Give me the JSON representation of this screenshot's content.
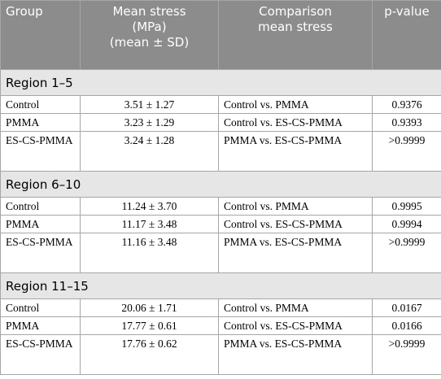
{
  "table": {
    "header": [
      "Group",
      "Mean stress\n(MPa)\n(mean ± SD)",
      "Comparison\nmean stress",
      "p-value"
    ],
    "sections": [
      {
        "title": "Region 1–5",
        "rows": [
          [
            "Control",
            "3.51 ± 1.27",
            "Control vs. PMMA",
            "0.9376"
          ],
          [
            "PMMA",
            "3.23 ± 1.29",
            "Control vs. ES-CS-PMMA",
            "0.9393"
          ],
          [
            "ES-CS-PMMA",
            "3.24 ± 1.28",
            "PMMA vs. ES-CS-PMMA",
            ">0.9999"
          ]
        ]
      },
      {
        "title": "Region 6–10",
        "rows": [
          [
            "Control",
            "11.24 ± 3.70",
            "Control vs. PMMA",
            "0.9995"
          ],
          [
            "PMMA",
            "11.17 ± 3.48",
            "Control vs. ES-CS-PMMA",
            "0.9994"
          ],
          [
            "ES-CS-PMMA",
            "11.16 ± 3.48",
            "PMMA vs. ES-CS-PMMA",
            ">0.9999"
          ]
        ]
      },
      {
        "title": "Region 11–15",
        "rows": [
          [
            "Control",
            "20.06 ± 1.71",
            "Control vs. PMMA",
            "0.0167"
          ],
          [
            "PMMA",
            "17.77 ± 0.61",
            "Control vs. ES-CS-PMMA",
            "0.0166"
          ],
          [
            "ES-CS-PMMA",
            "17.76 ± 0.62",
            "PMMA vs. ES-CS-PMMA",
            ">0.9999"
          ]
        ]
      }
    ]
  }
}
